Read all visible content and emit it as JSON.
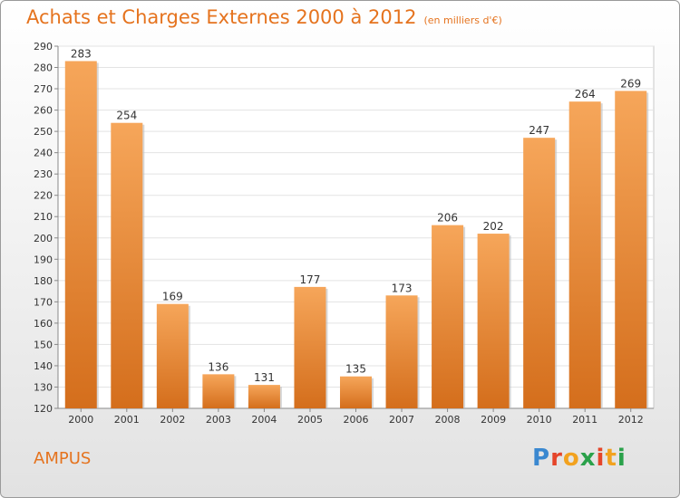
{
  "title": "Achats et Charges Externes 2000 à 2012",
  "subtitle": "(en milliers d'€)",
  "commune": "AMPUS",
  "logo": {
    "letters": [
      "P",
      "r",
      "o",
      "x",
      "i",
      "t",
      "i"
    ],
    "colors": [
      "#3a88d0",
      "#e5452a",
      "#f2a21f",
      "#2aa14a",
      "#e5452a",
      "#f2a21f",
      "#2aa14a"
    ]
  },
  "colors": {
    "accent": "#e5731e",
    "bar_light": "#f6a65a",
    "bar_dark": "#d46e1c"
  },
  "chart_data": {
    "type": "bar",
    "categories": [
      "2000",
      "2001",
      "2002",
      "2003",
      "2004",
      "2005",
      "2006",
      "2007",
      "2008",
      "2009",
      "2010",
      "2011",
      "2012"
    ],
    "values": [
      283,
      254,
      169,
      136,
      131,
      177,
      135,
      173,
      206,
      202,
      247,
      264,
      269
    ],
    "ylim": [
      120,
      290
    ],
    "yticks": [
      120,
      130,
      140,
      150,
      160,
      170,
      180,
      190,
      200,
      210,
      220,
      230,
      240,
      250,
      260,
      270,
      280,
      290
    ],
    "grid": true,
    "xlabel": "",
    "ylabel": ""
  }
}
